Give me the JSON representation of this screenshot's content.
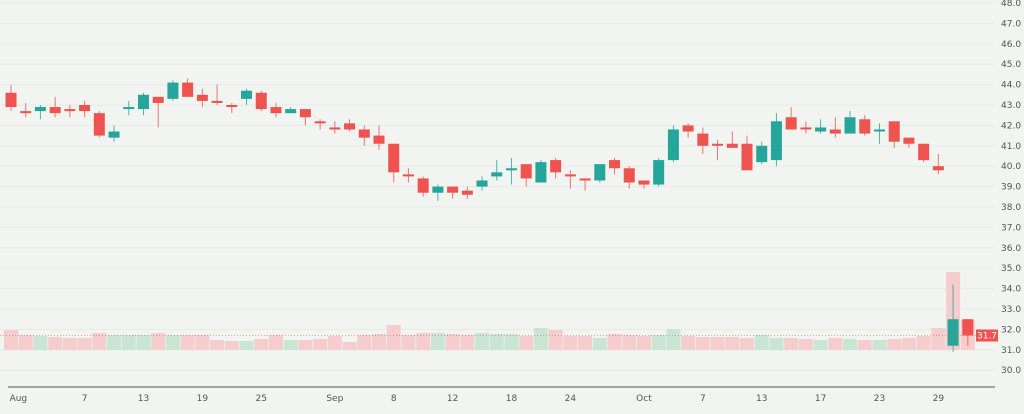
{
  "chart_data": {
    "type": "candlestick",
    "ylim": [
      30,
      48
    ],
    "y_ticks": [
      "48.0",
      "47.0",
      "46.0",
      "45.0",
      "44.0",
      "43.0",
      "42.0",
      "41.0",
      "40.0",
      "39.0",
      "38.0",
      "37.0",
      "36.0",
      "35.0",
      "34.0",
      "33.0",
      "32.0",
      "31.0",
      "30.0"
    ],
    "x_ticks": [
      {
        "label": "Aug",
        "index": 0.5
      },
      {
        "label": "7",
        "index": 5
      },
      {
        "label": "13",
        "index": 9
      },
      {
        "label": "19",
        "index": 13
      },
      {
        "label": "25",
        "index": 17
      },
      {
        "label": "Sep",
        "index": 22
      },
      {
        "label": "8",
        "index": 26
      },
      {
        "label": "12",
        "index": 30
      },
      {
        "label": "18",
        "index": 34
      },
      {
        "label": "24",
        "index": 38
      },
      {
        "label": "Oct",
        "index": 43
      },
      {
        "label": "7",
        "index": 47
      },
      {
        "label": "13",
        "index": 51
      },
      {
        "label": "17",
        "index": 55
      },
      {
        "label": "23",
        "index": 59
      },
      {
        "label": "29",
        "index": 63
      }
    ],
    "grid": true,
    "last_price": "31.7",
    "colors": {
      "up": "#26a69a",
      "down": "#ef5350",
      "up_volume": "#c8e6d3",
      "down_volume": "#f6cdcd",
      "price_line": "#ef5350"
    },
    "ohlc": [
      [
        43.6,
        44.0,
        42.7,
        42.9
      ],
      [
        42.7,
        43.1,
        42.4,
        42.6
      ],
      [
        42.7,
        43.0,
        42.3,
        42.9
      ],
      [
        42.9,
        43.4,
        42.4,
        42.6
      ],
      [
        42.8,
        43.0,
        42.4,
        42.7
      ],
      [
        43.0,
        43.2,
        42.4,
        42.7
      ],
      [
        42.6,
        42.7,
        41.4,
        41.5
      ],
      [
        41.4,
        42.0,
        41.2,
        41.7
      ],
      [
        42.8,
        43.2,
        42.5,
        42.9
      ],
      [
        42.8,
        43.6,
        42.5,
        43.5
      ],
      [
        43.4,
        43.4,
        41.9,
        43.1
      ],
      [
        43.3,
        44.2,
        43.2,
        44.1
      ],
      [
        44.1,
        44.3,
        43.4,
        43.4
      ],
      [
        43.5,
        43.8,
        42.9,
        43.2
      ],
      [
        43.2,
        44.0,
        43.0,
        43.1
      ],
      [
        43.0,
        43.1,
        42.6,
        42.9
      ],
      [
        43.3,
        43.8,
        43.0,
        43.7
      ],
      [
        43.6,
        43.7,
        42.7,
        42.8
      ],
      [
        42.9,
        43.1,
        42.4,
        42.6
      ],
      [
        42.6,
        42.9,
        42.6,
        42.8
      ],
      [
        42.8,
        42.8,
        42.0,
        42.4
      ],
      [
        42.2,
        42.3,
        41.8,
        42.1
      ],
      [
        41.9,
        42.2,
        41.6,
        41.8
      ],
      [
        42.1,
        42.3,
        41.7,
        41.8
      ],
      [
        41.8,
        42.0,
        41.0,
        41.4
      ],
      [
        41.5,
        42.0,
        40.8,
        41.1
      ],
      [
        41.1,
        41.1,
        39.2,
        39.7
      ],
      [
        39.6,
        39.9,
        39.2,
        39.5
      ],
      [
        39.4,
        39.5,
        38.5,
        38.7
      ],
      [
        38.7,
        39.1,
        38.3,
        39.0
      ],
      [
        39.0,
        39.0,
        38.4,
        38.7
      ],
      [
        38.8,
        39.0,
        38.4,
        38.6
      ],
      [
        39.0,
        39.5,
        38.8,
        39.3
      ],
      [
        39.5,
        40.3,
        39.3,
        39.7
      ],
      [
        39.8,
        40.4,
        39.1,
        39.9
      ],
      [
        40.1,
        40.1,
        39.0,
        39.4
      ],
      [
        39.2,
        40.3,
        39.2,
        40.2
      ],
      [
        40.3,
        40.4,
        39.4,
        39.7
      ],
      [
        39.6,
        39.8,
        38.9,
        39.5
      ],
      [
        39.4,
        39.4,
        38.8,
        39.3
      ],
      [
        39.3,
        40.1,
        39.2,
        40.1
      ],
      [
        40.3,
        40.4,
        39.6,
        39.9
      ],
      [
        39.9,
        40.0,
        38.9,
        39.2
      ],
      [
        39.3,
        39.3,
        38.9,
        39.1
      ],
      [
        39.1,
        40.4,
        39.0,
        40.3
      ],
      [
        40.3,
        42.0,
        40.2,
        41.8
      ],
      [
        42.0,
        42.1,
        41.4,
        41.7
      ],
      [
        41.6,
        41.9,
        40.6,
        41.0
      ],
      [
        41.1,
        41.3,
        40.3,
        41.0
      ],
      [
        41.1,
        41.7,
        40.9,
        40.9
      ],
      [
        41.1,
        41.5,
        39.8,
        39.8
      ],
      [
        40.2,
        41.2,
        40.1,
        41.0
      ],
      [
        40.3,
        42.6,
        40.0,
        42.2
      ],
      [
        42.4,
        42.9,
        41.8,
        41.8
      ],
      [
        41.9,
        42.2,
        41.6,
        41.8
      ],
      [
        41.7,
        42.3,
        41.6,
        41.9
      ],
      [
        41.8,
        42.4,
        41.4,
        41.6
      ],
      [
        41.6,
        42.7,
        41.6,
        42.4
      ],
      [
        42.3,
        42.5,
        41.5,
        41.6
      ],
      [
        41.7,
        42.1,
        41.1,
        41.8
      ],
      [
        42.2,
        42.2,
        40.9,
        41.2
      ],
      [
        41.4,
        41.4,
        40.9,
        41.1
      ],
      [
        41.1,
        41.1,
        40.2,
        40.3
      ],
      [
        40.0,
        40.6,
        39.6,
        39.8
      ],
      [
        31.2,
        34.2,
        30.9,
        32.5
      ],
      [
        32.5,
        32.5,
        31.2,
        31.7
      ]
    ],
    "volume": [
      20,
      15,
      14,
      13,
      12,
      12,
      17,
      15,
      15,
      15,
      17,
      15,
      15,
      15,
      10,
      9,
      9,
      11,
      15,
      10,
      10,
      11,
      14,
      8,
      15,
      16,
      25,
      15,
      17,
      17,
      16,
      15,
      17,
      16,
      16,
      14,
      22,
      20,
      14,
      14,
      12,
      16,
      15,
      14,
      15,
      21,
      14,
      13,
      13,
      13,
      12,
      15,
      12,
      12,
      11,
      10,
      12,
      11,
      10,
      10,
      11,
      12,
      14,
      22,
      78,
      30
    ]
  }
}
